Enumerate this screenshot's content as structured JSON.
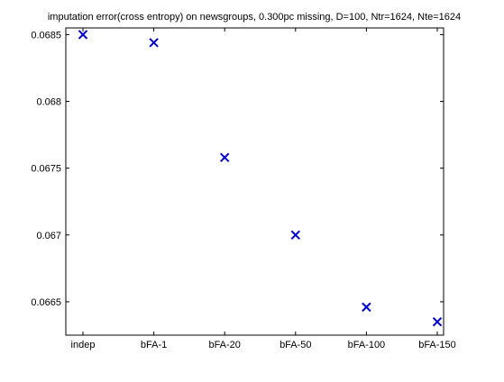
{
  "chart_data": {
    "type": "scatter",
    "title": "imputation error(cross entropy) on newsgroups, 0.300pc missing, D=100, Ntr=1624, Nte=1624",
    "xlabel": "",
    "ylabel": "",
    "categories": [
      "indep",
      "bFA-1",
      "bFA-20",
      "bFA-50",
      "bFA-100",
      "bFA-150"
    ],
    "values": [
      0.0685,
      0.06844,
      0.06758,
      0.067,
      0.06646,
      0.06635
    ],
    "yticks": [
      "0.0665",
      "0.067",
      "0.0675",
      "0.068",
      "0.0685"
    ],
    "ylim": [
      0.06625,
      0.06855
    ],
    "marker": "x",
    "marker_color": "#0000cc",
    "grid": false,
    "legend": "none"
  }
}
